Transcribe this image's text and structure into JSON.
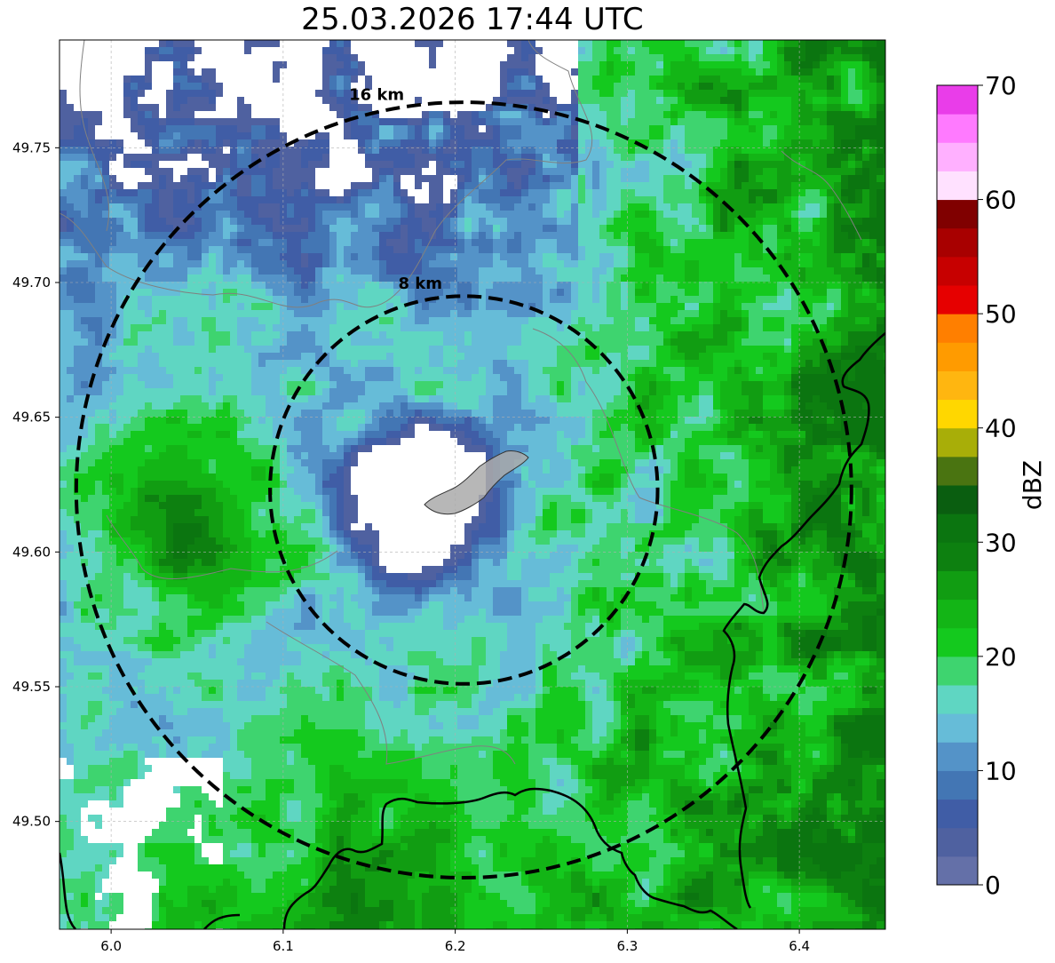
{
  "title": "25.03.2026 17:44 UTC",
  "map": {
    "extent": {
      "lon_min": 5.97,
      "lon_max": 6.45,
      "lat_min": 49.46,
      "lat_max": 49.79
    },
    "x_ticks": [
      {
        "value": 6.0,
        "label": "6.0"
      },
      {
        "value": 6.1,
        "label": "6.1"
      },
      {
        "value": 6.2,
        "label": "6.2"
      },
      {
        "value": 6.3,
        "label": "6.3"
      },
      {
        "value": 6.4,
        "label": "6.4"
      }
    ],
    "y_ticks": [
      {
        "value": 49.5,
        "label": "49.50"
      },
      {
        "value": 49.55,
        "label": "49.55"
      },
      {
        "value": 49.6,
        "label": "49.60"
      },
      {
        "value": 49.65,
        "label": "49.65"
      },
      {
        "value": 49.7,
        "label": "49.70"
      },
      {
        "value": 49.75,
        "label": "49.75"
      }
    ],
    "grid": true,
    "center": {
      "lon": 6.205,
      "lat": 49.623
    },
    "rings": [
      {
        "label": "8 km",
        "radius_km": 8
      },
      {
        "label": "16 km",
        "radius_km": 16
      }
    ],
    "colors": {
      "ring": "#000000",
      "border": "#000000",
      "admin": "#808080",
      "urban": "#aaaaaa"
    }
  },
  "colorbar": {
    "label": "dBZ",
    "min": 0,
    "max": 70,
    "ticks": [
      {
        "value": 0,
        "label": "0"
      },
      {
        "value": 10,
        "label": "10"
      },
      {
        "value": 20,
        "label": "20"
      },
      {
        "value": 30,
        "label": "30"
      },
      {
        "value": 40,
        "label": "40"
      },
      {
        "value": 50,
        "label": "50"
      },
      {
        "value": 60,
        "label": "60"
      },
      {
        "value": 70,
        "label": "70"
      }
    ],
    "colors": [
      "#6470a8",
      "#4f61a0",
      "#405da6",
      "#4376b4",
      "#5493c8",
      "#66bcd8",
      "#5fd6c2",
      "#3ed46f",
      "#14c91e",
      "#13b516",
      "#119d12",
      "#0d8010",
      "#0b7510",
      "#0a5e10",
      "#4a7411",
      "#a8ae08",
      "#ffd700",
      "#ffb610",
      "#ff9b00",
      "#ff7f00",
      "#e60000",
      "#c70000",
      "#a80000",
      "#800000",
      "#ffe1ff",
      "#ffb0ff",
      "#ff7aff",
      "#e93de9"
    ]
  }
}
